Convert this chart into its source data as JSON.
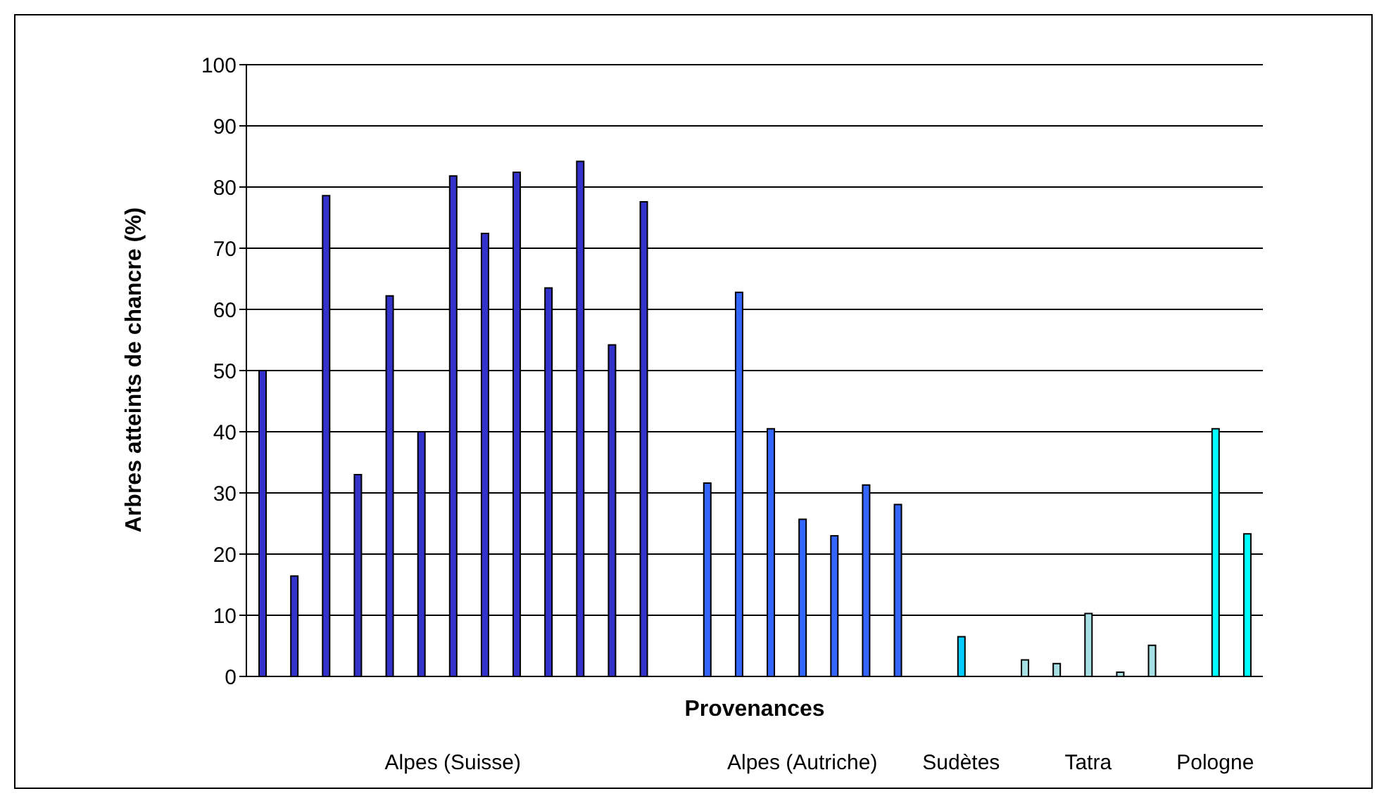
{
  "chart_data": {
    "type": "bar",
    "xlabel": "Provenances",
    "ylabel": "Arbres atteints de chancre (%)",
    "categories": [
      null,
      null,
      null,
      null,
      null,
      null,
      "Alpes (Suisse)",
      null,
      null,
      null,
      null,
      null,
      null,
      null,
      null,
      null,
      null,
      "Alpes (Autriche)",
      null,
      null,
      null,
      null,
      "Sudètes",
      null,
      null,
      null,
      "Tatra",
      null,
      null,
      null,
      "Pologne",
      null
    ],
    "values": [
      50,
      16.4,
      78.6,
      33,
      62.2,
      40,
      81.8,
      72.4,
      82.4,
      63.5,
      84.2,
      54.2,
      77.6,
      null,
      31.6,
      62.8,
      40.5,
      25.7,
      23,
      31.3,
      28.1,
      null,
      6.5,
      null,
      2.7,
      2.1,
      10.3,
      0.7,
      5.1,
      null,
      40.5,
      23.3
    ],
    "colors": [
      "#3333cc",
      "#3333cc",
      "#3333cc",
      "#3333cc",
      "#3333cc",
      "#3333cc",
      "#3333cc",
      "#3333cc",
      "#3333cc",
      "#3333cc",
      "#3333cc",
      "#3333cc",
      "#3333cc",
      "#3333cc",
      "#3366ff",
      "#3366ff",
      "#3366ff",
      "#3366ff",
      "#3366ff",
      "#3366ff",
      "#3366ff",
      "#3366ff",
      "#00ccff",
      "#00ccff",
      "#a6e0e4",
      "#a6e0e4",
      "#a6e0e4",
      "#a6e0e4",
      "#a6e0e4",
      "#a6e0e4",
      "#00ffff",
      "#00ffff"
    ],
    "ylim": [
      0,
      100
    ],
    "yticks": [
      0,
      10,
      20,
      30,
      40,
      50,
      60,
      70,
      80,
      90,
      100
    ],
    "grid": "y"
  }
}
